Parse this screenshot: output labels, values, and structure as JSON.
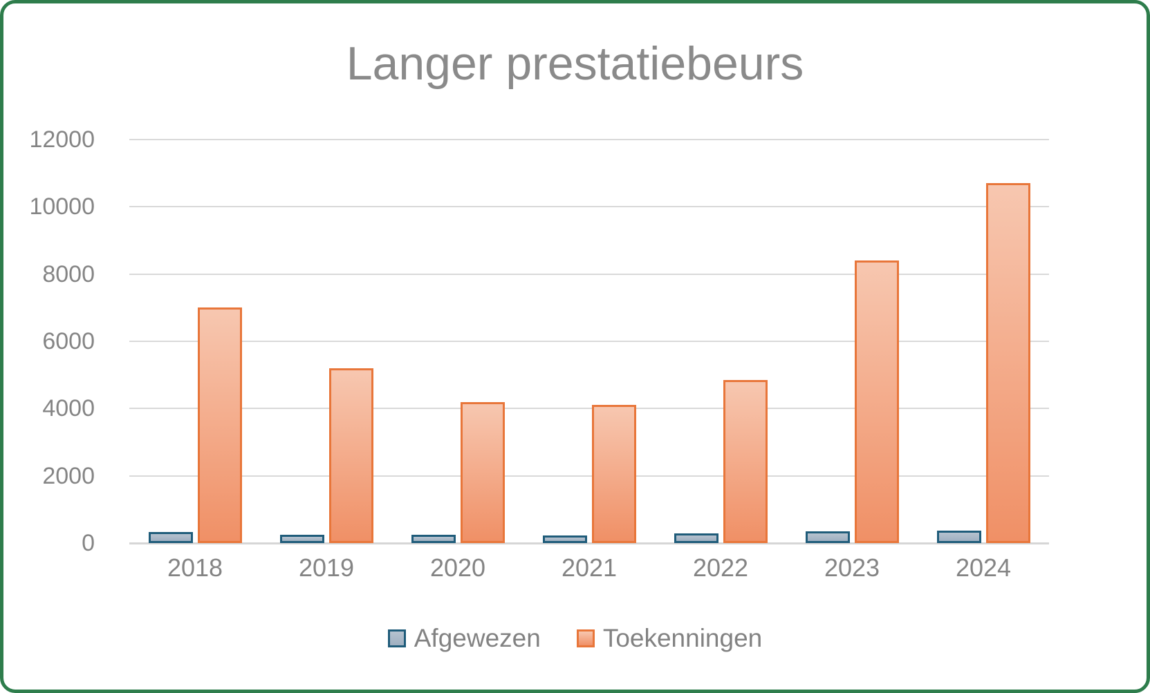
{
  "frame": {
    "border_color": "#2e7d4c",
    "background": "#ffffff"
  },
  "title": "Langer prestatiebeurs",
  "colors": {
    "title_text": "#8a8a8a",
    "axis_text": "#848484",
    "gridline": "#d9d9d9",
    "afgewezen_fill_top": "#b6c2cf",
    "afgewezen_fill_bottom": "#9fb0c1",
    "afgewezen_border": "#1f5c7a",
    "toekenningen_fill_top": "#f7c7b0",
    "toekenningen_fill_bottom": "#f09066",
    "toekenningen_border": "#e8763a"
  },
  "chart_data": {
    "type": "bar",
    "title": "Langer prestatiebeurs",
    "categories": [
      "2018",
      "2019",
      "2020",
      "2021",
      "2022",
      "2023",
      "2024"
    ],
    "series": [
      {
        "name": "Afgewezen",
        "values": [
          320,
          250,
          250,
          220,
          290,
          340,
          360
        ],
        "fill_top": "#b6c2cf",
        "fill_bottom": "#9fb0c1",
        "border": "#1f5c7a"
      },
      {
        "name": "Toekenningen",
        "values": [
          7000,
          5200,
          4200,
          4100,
          4850,
          8400,
          10700
        ],
        "fill_top": "#f7c7b0",
        "fill_bottom": "#f09066",
        "border": "#e8763a"
      }
    ],
    "xlabel": "",
    "ylabel": "",
    "ylim": [
      0,
      12000
    ],
    "ytick_step": 2000,
    "yticks": [
      "12000",
      "10000",
      "8000",
      "6000",
      "4000",
      "2000",
      "0"
    ],
    "grid": true,
    "legend_position": "bottom"
  }
}
